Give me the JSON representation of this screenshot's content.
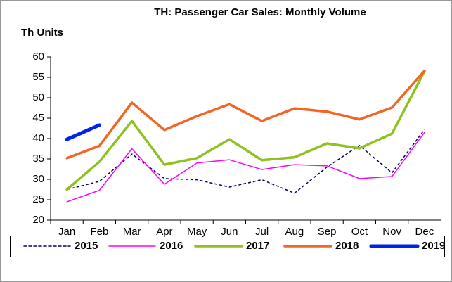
{
  "chart_data": {
    "type": "line",
    "title": "TH: Passenger Car Sales: Monthly Volume",
    "y_label": "Th Units",
    "categories": [
      "Jan",
      "Feb",
      "Mar",
      "Apr",
      "May",
      "Jun",
      "Jul",
      "Aug",
      "Sep",
      "Oct",
      "Nov",
      "Dec"
    ],
    "series": [
      {
        "name": "2015",
        "color": "#000066",
        "dashed": true,
        "values": [
          27.5,
          29.5,
          36.2,
          30.2,
          29.9,
          28.1,
          29.9,
          26.6,
          33,
          38.3,
          31.6,
          42.2
        ]
      },
      {
        "name": "2016",
        "color": "#ff00ff",
        "values": [
          24.5,
          27.3,
          37.5,
          28.8,
          34,
          34.8,
          32.4,
          33.6,
          33.3,
          30.2,
          30.7,
          41.5
        ]
      },
      {
        "name": "2017",
        "color": "#8dc21f",
        "values": [
          27.5,
          34.3,
          44.3,
          33.6,
          35.2,
          39.8,
          34.7,
          35.4,
          38.8,
          37.6,
          41.2,
          56.5
        ]
      },
      {
        "name": "2018",
        "color": "#f26522",
        "values": [
          35.2,
          38.2,
          48.8,
          42.1,
          45.5,
          48.4,
          44.3,
          47.4,
          46.6,
          44.7,
          47.6,
          56.6
        ]
      },
      {
        "name": "2019",
        "color": "#0022ee",
        "values": [
          39.8,
          43.3,
          null,
          null,
          null,
          null,
          null,
          null,
          null,
          null,
          null,
          null
        ]
      }
    ],
    "ylim": [
      20,
      60
    ],
    "yticks": [
      20,
      25,
      30,
      35,
      40,
      45,
      50,
      55,
      60
    ],
    "grid": false,
    "legend": "bottom"
  }
}
